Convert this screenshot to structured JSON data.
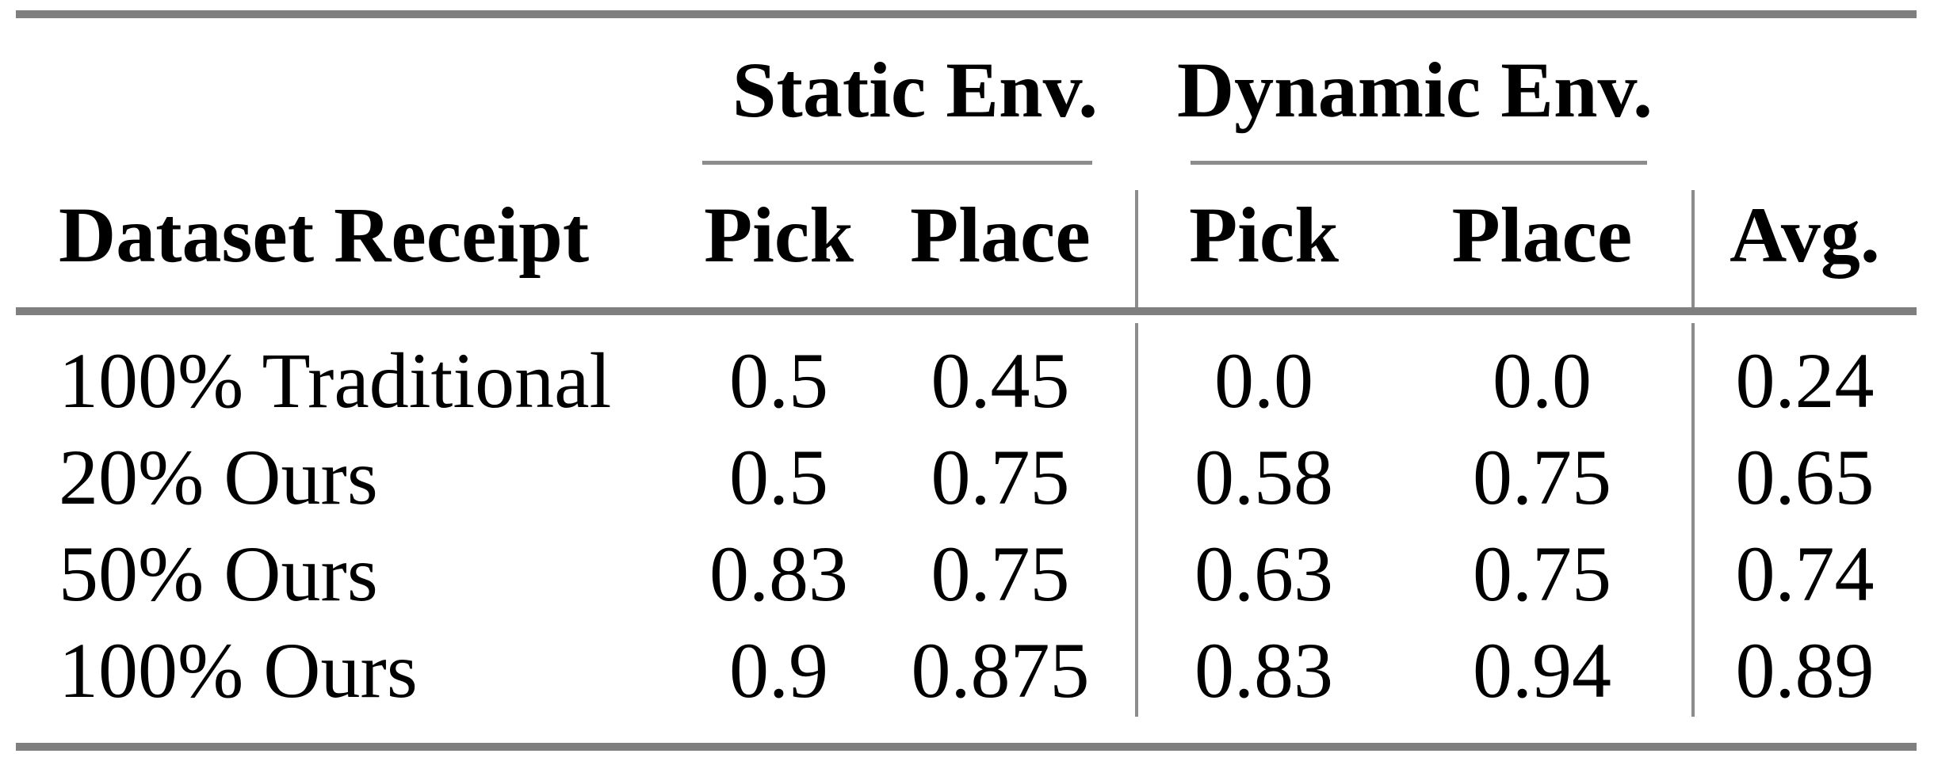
{
  "table": {
    "groups": {
      "static": "Static Env.",
      "dynamic": "Dynamic Env."
    },
    "columns": {
      "dataset": "Dataset Receipt",
      "static_pick": "Pick",
      "static_place": "Place",
      "dynamic_pick": "Pick",
      "dynamic_place": "Place",
      "avg": "Avg."
    },
    "rows": [
      {
        "dataset": "100% Traditional",
        "static_pick": "0.5",
        "static_place": "0.45",
        "dynamic_pick": "0.0",
        "dynamic_place": "0.0",
        "avg": "0.24"
      },
      {
        "dataset": "20% Ours",
        "static_pick": "0.5",
        "static_place": "0.75",
        "dynamic_pick": "0.58",
        "dynamic_place": "0.75",
        "avg": "0.65"
      },
      {
        "dataset": "50% Ours",
        "static_pick": "0.83",
        "static_place": "0.75",
        "dynamic_pick": "0.63",
        "dynamic_place": "0.75",
        "avg": "0.74"
      },
      {
        "dataset": "100% Ours",
        "static_pick": "0.9",
        "static_place": "0.875",
        "dynamic_pick": "0.83",
        "dynamic_place": "0.94",
        "avg": "0.89"
      }
    ]
  }
}
